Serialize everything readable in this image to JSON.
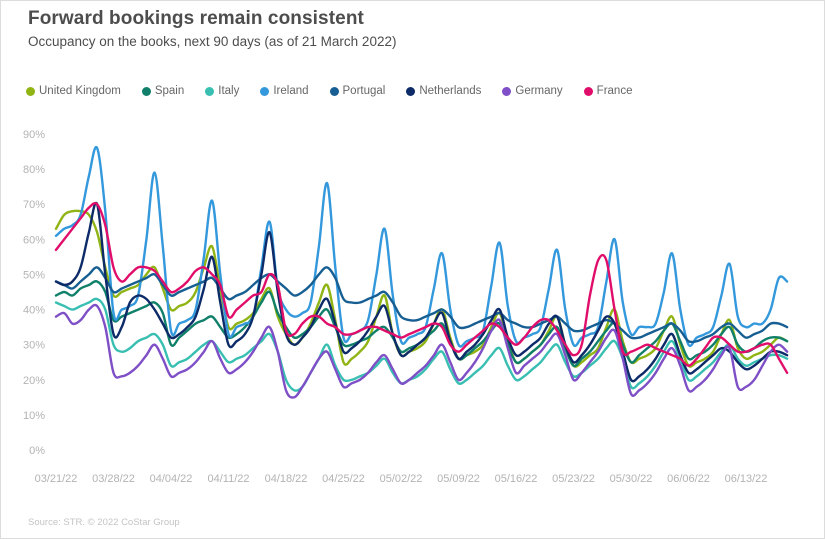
{
  "header": {
    "title": "Forward bookings remain consistent",
    "subtitle": "Occupancy on the books, next 90 days (as of 21 March 2022)"
  },
  "footer": {
    "source": "Source: STR. © 2022 CoStar Group"
  },
  "chart_data": {
    "type": "line",
    "title": "Forward bookings remain consistent",
    "subtitle": "Occupancy on the books, next 90 days (as of 21 March 2022)",
    "legend_position": "top",
    "grid": false,
    "ylim": [
      0,
      90
    ],
    "y_ticks": [
      0,
      10,
      20,
      30,
      40,
      50,
      60,
      70,
      80,
      90
    ],
    "y_tick_suffix": "%",
    "x_labels": [
      "03/21/22",
      "03/28/22",
      "04/04/22",
      "04/11/22",
      "04/18/22",
      "04/25/22",
      "05/02/22",
      "05/09/22",
      "05/16/22",
      "05/23/22",
      "05/30/22",
      "06/06/22",
      "06/13/22"
    ],
    "x_label_days": [
      0,
      7,
      14,
      21,
      28,
      35,
      42,
      49,
      56,
      63,
      70,
      77,
      84
    ],
    "x_unit": "day",
    "num_days": 90,
    "series": [
      {
        "name": "United Kingdom",
        "color": "#8fb414",
        "values": [
          63,
          67,
          68,
          68,
          67,
          62,
          52,
          44,
          45,
          46,
          47,
          50,
          52,
          46,
          40,
          41,
          42,
          45,
          52,
          58,
          46,
          35,
          36,
          37,
          39,
          43,
          46,
          38,
          33,
          30,
          32,
          36,
          42,
          47,
          37,
          25,
          26,
          28,
          31,
          38,
          44,
          33,
          27,
          28,
          29,
          31,
          36,
          40,
          32,
          26,
          27,
          28,
          30,
          35,
          39,
          31,
          25,
          26,
          28,
          30,
          34,
          38,
          30,
          24,
          25,
          27,
          29,
          35,
          40,
          31,
          25,
          26,
          27,
          29,
          34,
          38,
          30,
          24,
          25,
          26,
          28,
          33,
          37,
          29,
          26,
          27,
          28,
          30,
          32,
          31
        ]
      },
      {
        "name": "Spain",
        "color": "#10806b",
        "values": [
          44,
          45,
          44,
          46,
          47,
          48,
          45,
          37,
          38,
          39,
          40,
          41,
          42,
          39,
          30,
          32,
          34,
          36,
          37,
          38,
          35,
          32,
          33,
          35,
          38,
          42,
          45,
          39,
          35,
          32,
          33,
          35,
          38,
          40,
          35,
          30,
          30,
          31,
          32,
          34,
          35,
          32,
          28,
          29,
          30,
          32,
          34,
          36,
          31,
          26,
          27,
          29,
          31,
          34,
          36,
          30,
          25,
          26,
          28,
          30,
          33,
          35,
          29,
          24,
          26,
          28,
          31,
          34,
          36,
          30,
          25,
          27,
          29,
          31,
          34,
          36,
          31,
          26,
          27,
          28,
          30,
          33,
          35,
          30,
          28,
          29,
          31,
          32,
          32,
          31
        ]
      },
      {
        "name": "Italy",
        "color": "#38bfb2",
        "values": [
          42,
          41,
          40,
          41,
          42,
          43,
          40,
          30,
          28,
          29,
          31,
          32,
          33,
          30,
          24,
          25,
          26,
          28,
          30,
          31,
          28,
          25,
          26,
          27,
          29,
          31,
          33,
          28,
          20,
          17,
          18,
          22,
          26,
          30,
          24,
          20,
          20,
          21,
          22,
          24,
          26,
          22,
          19,
          20,
          21,
          23,
          26,
          28,
          23,
          19,
          20,
          22,
          24,
          27,
          29,
          24,
          20,
          21,
          23,
          25,
          28,
          30,
          25,
          21,
          22,
          24,
          26,
          29,
          31,
          26,
          18,
          19,
          21,
          24,
          28,
          31,
          26,
          20,
          21,
          23,
          25,
          28,
          30,
          26,
          24,
          25,
          26,
          27,
          27,
          26
        ]
      },
      {
        "name": "Ireland",
        "color": "#3398dc",
        "values": [
          61,
          63,
          64,
          67,
          78,
          86,
          68,
          39,
          40,
          41,
          44,
          60,
          79,
          58,
          34,
          36,
          37,
          40,
          55,
          71,
          50,
          33,
          35,
          36,
          38,
          52,
          65,
          46,
          40,
          38,
          39,
          42,
          58,
          76,
          52,
          32,
          33,
          34,
          37,
          50,
          63,
          44,
          31,
          32,
          33,
          35,
          46,
          56,
          40,
          30,
          31,
          32,
          34,
          47,
          59,
          41,
          31,
          32,
          33,
          35,
          46,
          57,
          40,
          30,
          32,
          33,
          35,
          48,
          60,
          42,
          33,
          35,
          35,
          36,
          45,
          56,
          40,
          30,
          32,
          33,
          35,
          44,
          53,
          38,
          35,
          36,
          36,
          40,
          49,
          48
        ]
      },
      {
        "name": "Portugal",
        "color": "#175f93",
        "values": [
          48,
          47,
          46,
          48,
          50,
          52,
          49,
          45,
          46,
          47,
          48,
          49,
          50,
          47,
          44,
          45,
          46,
          47,
          48,
          49,
          46,
          43,
          44,
          45,
          47,
          49,
          50,
          48,
          46,
          44,
          45,
          47,
          50,
          52,
          49,
          43,
          42,
          42,
          43,
          44,
          45,
          42,
          38,
          37,
          37,
          38,
          39,
          40,
          38,
          35,
          35,
          36,
          37,
          38,
          39,
          37,
          36,
          35,
          35,
          36,
          37,
          38,
          36,
          34,
          34,
          35,
          36,
          37,
          36,
          34,
          32,
          32,
          33,
          34,
          35,
          36,
          34,
          31,
          31,
          32,
          33,
          35,
          36,
          34,
          32,
          33,
          34,
          36,
          36,
          35
        ]
      },
      {
        "name": "Netherlands",
        "color": "#0d2b68",
        "values": [
          48,
          47,
          48,
          52,
          62,
          70,
          50,
          33,
          35,
          42,
          44,
          43,
          40,
          36,
          32,
          33,
          35,
          38,
          46,
          55,
          42,
          30,
          31,
          33,
          38,
          50,
          62,
          45,
          33,
          30,
          32,
          35,
          40,
          43,
          36,
          28,
          29,
          31,
          34,
          38,
          41,
          33,
          27,
          28,
          30,
          32,
          36,
          39,
          31,
          26,
          28,
          30,
          33,
          37,
          40,
          32,
          27,
          28,
          30,
          32,
          36,
          38,
          30,
          25,
          27,
          30,
          34,
          38,
          36,
          28,
          20,
          21,
          23,
          26,
          30,
          33,
          27,
          22,
          23,
          25,
          27,
          29,
          28,
          25,
          23,
          24,
          26,
          28,
          28,
          27
        ]
      },
      {
        "name": "Germany",
        "color": "#7e4fc6",
        "values": [
          38,
          39,
          36,
          37,
          40,
          41,
          35,
          22,
          21,
          22,
          24,
          27,
          30,
          26,
          21,
          22,
          23,
          25,
          28,
          31,
          26,
          22,
          23,
          25,
          28,
          32,
          35,
          28,
          17,
          15,
          18,
          22,
          26,
          28,
          23,
          18,
          19,
          20,
          22,
          25,
          27,
          23,
          19,
          20,
          22,
          24,
          27,
          30,
          25,
          20,
          22,
          25,
          29,
          34,
          37,
          29,
          22,
          24,
          26,
          28,
          31,
          33,
          27,
          20,
          22,
          25,
          28,
          32,
          34,
          26,
          16,
          17,
          19,
          22,
          26,
          29,
          24,
          17,
          18,
          20,
          23,
          27,
          29,
          18,
          18,
          20,
          24,
          28,
          30,
          28
        ]
      },
      {
        "name": "France",
        "color": "#e00e6a",
        "values": [
          57,
          60,
          63,
          66,
          69,
          70,
          64,
          52,
          48,
          50,
          52,
          52,
          51,
          48,
          45,
          46,
          48,
          51,
          52,
          50,
          47,
          38,
          40,
          42,
          44,
          45,
          50,
          47,
          34,
          33,
          36,
          38,
          38,
          36,
          35,
          33,
          33,
          34,
          35,
          35,
          34,
          33,
          32,
          33,
          34,
          35,
          36,
          35,
          30,
          28,
          30,
          32,
          34,
          36,
          35,
          32,
          30,
          32,
          35,
          37,
          37,
          34,
          30,
          27,
          30,
          44,
          54,
          54,
          40,
          28,
          28,
          29,
          30,
          29,
          28,
          27,
          26,
          24,
          26,
          29,
          32,
          32,
          30,
          28,
          28,
          29,
          30,
          30,
          26,
          22
        ]
      }
    ]
  }
}
